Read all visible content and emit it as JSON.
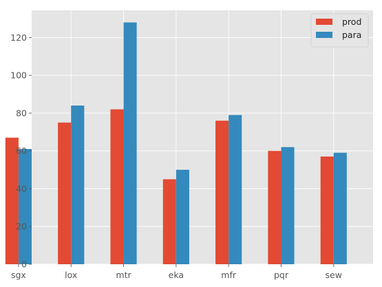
{
  "chart_data": {
    "type": "bar",
    "categories": [
      "sgx",
      "lox",
      "mtr",
      "eka",
      "mfr",
      "pqr",
      "sew"
    ],
    "series": [
      {
        "name": "prod",
        "values": [
          67,
          75,
          82,
          45,
          76,
          60,
          57
        ],
        "color": "#E24A33"
      },
      {
        "name": "para",
        "values": [
          61,
          84,
          128,
          50,
          79,
          62,
          59
        ],
        "color": "#348ABD"
      }
    ],
    "yticks": [
      0,
      20,
      40,
      60,
      80,
      100,
      120
    ],
    "ylim": [
      0,
      134.4
    ],
    "grid": true,
    "legend_position": "top-right",
    "background_color": "#E5E5E5",
    "grid_color": "#FFFFFF"
  }
}
